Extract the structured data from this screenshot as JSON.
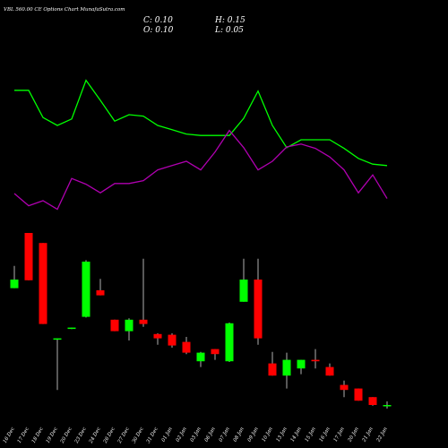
{
  "chart_data": {
    "type": "candlestick",
    "title": "VBL 560.00 CE Options Chart MunafaSutra.com",
    "header": [
      "C: 0.10",
      "H: 0.15",
      "O: 0.10",
      "L: 0.05"
    ],
    "categories": [
      "16 Dec",
      "17 Dec",
      "18 Dec",
      "19 Dec",
      "20 Dec",
      "23 Dec",
      "24 Dec",
      "26 Dec",
      "27 Dec",
      "30 Dec",
      "31 Dec",
      "01 Jan",
      "02 Jan",
      "03 Jan",
      "06 Jan",
      "07 Jan",
      "08 Jan",
      "09 Jan",
      "10 Jan",
      "13 Jan",
      "14 Jan",
      "15 Jan",
      "16 Jan",
      "17 Jan",
      "20 Jan",
      "21 Jan",
      "22 Jan"
    ],
    "open": [
      1.73,
      2.5,
      2.36,
      1.03,
      1.18,
      1.33,
      1.7,
      1.29,
      1.13,
      1.29,
      1.09,
      1.08,
      0.98,
      0.71,
      0.88,
      0.71,
      1.54,
      1.85,
      0.68,
      0.51,
      0.61,
      0.73,
      0.63,
      0.38,
      0.33,
      0.21,
      0.1
    ],
    "high": [
      2.04,
      2.5,
      2.36,
      1.03,
      1.18,
      2.12,
      1.86,
      1.29,
      1.31,
      2.14,
      1.1,
      1.1,
      1.05,
      0.84,
      0.88,
      1.25,
      2.14,
      2.14,
      0.84,
      0.83,
      0.73,
      0.88,
      0.68,
      0.44,
      0.33,
      0.21,
      0.15
    ],
    "low": [
      1.73,
      1.84,
      1.23,
      0.31,
      1.16,
      1.32,
      1.63,
      1.13,
      1.0,
      1.19,
      0.94,
      0.9,
      0.81,
      0.63,
      0.73,
      0.7,
      1.54,
      0.94,
      0.51,
      0.33,
      0.53,
      0.61,
      0.51,
      0.21,
      0.16,
      0.09,
      0.05
    ],
    "close": [
      1.85,
      1.84,
      1.23,
      1.03,
      1.18,
      2.1,
      1.63,
      1.13,
      1.29,
      1.23,
      1.03,
      0.93,
      0.83,
      0.83,
      0.81,
      1.24,
      1.85,
      1.03,
      0.51,
      0.73,
      0.73,
      0.71,
      0.51,
      0.31,
      0.16,
      0.1,
      0.1
    ],
    "up_color": "#00ff00",
    "down_color": "#ff0000",
    "wick_color": "#dddddd",
    "series": [
      {
        "color": "#00ff00",
        "values": [
          4.49,
          4.49,
          4.11,
          4.0,
          4.09,
          4.63,
          4.35,
          4.06,
          4.15,
          4.13,
          4.0,
          3.94,
          3.88,
          3.86,
          3.86,
          3.86,
          4.1,
          4.48,
          4.0,
          3.69,
          3.8,
          3.8,
          3.8,
          3.68,
          3.54,
          3.46,
          3.44
        ]
      },
      {
        "color": "#b000b0",
        "values": [
          3.05,
          2.88,
          2.95,
          2.83,
          3.26,
          3.18,
          3.06,
          3.19,
          3.19,
          3.23,
          3.38,
          3.44,
          3.5,
          3.38,
          3.63,
          3.93,
          3.69,
          3.38,
          3.5,
          3.7,
          3.74,
          3.68,
          3.56,
          3.38,
          3.06,
          3.31,
          2.98
        ]
      }
    ],
    "ylim": [
      0,
      5.75
    ]
  }
}
